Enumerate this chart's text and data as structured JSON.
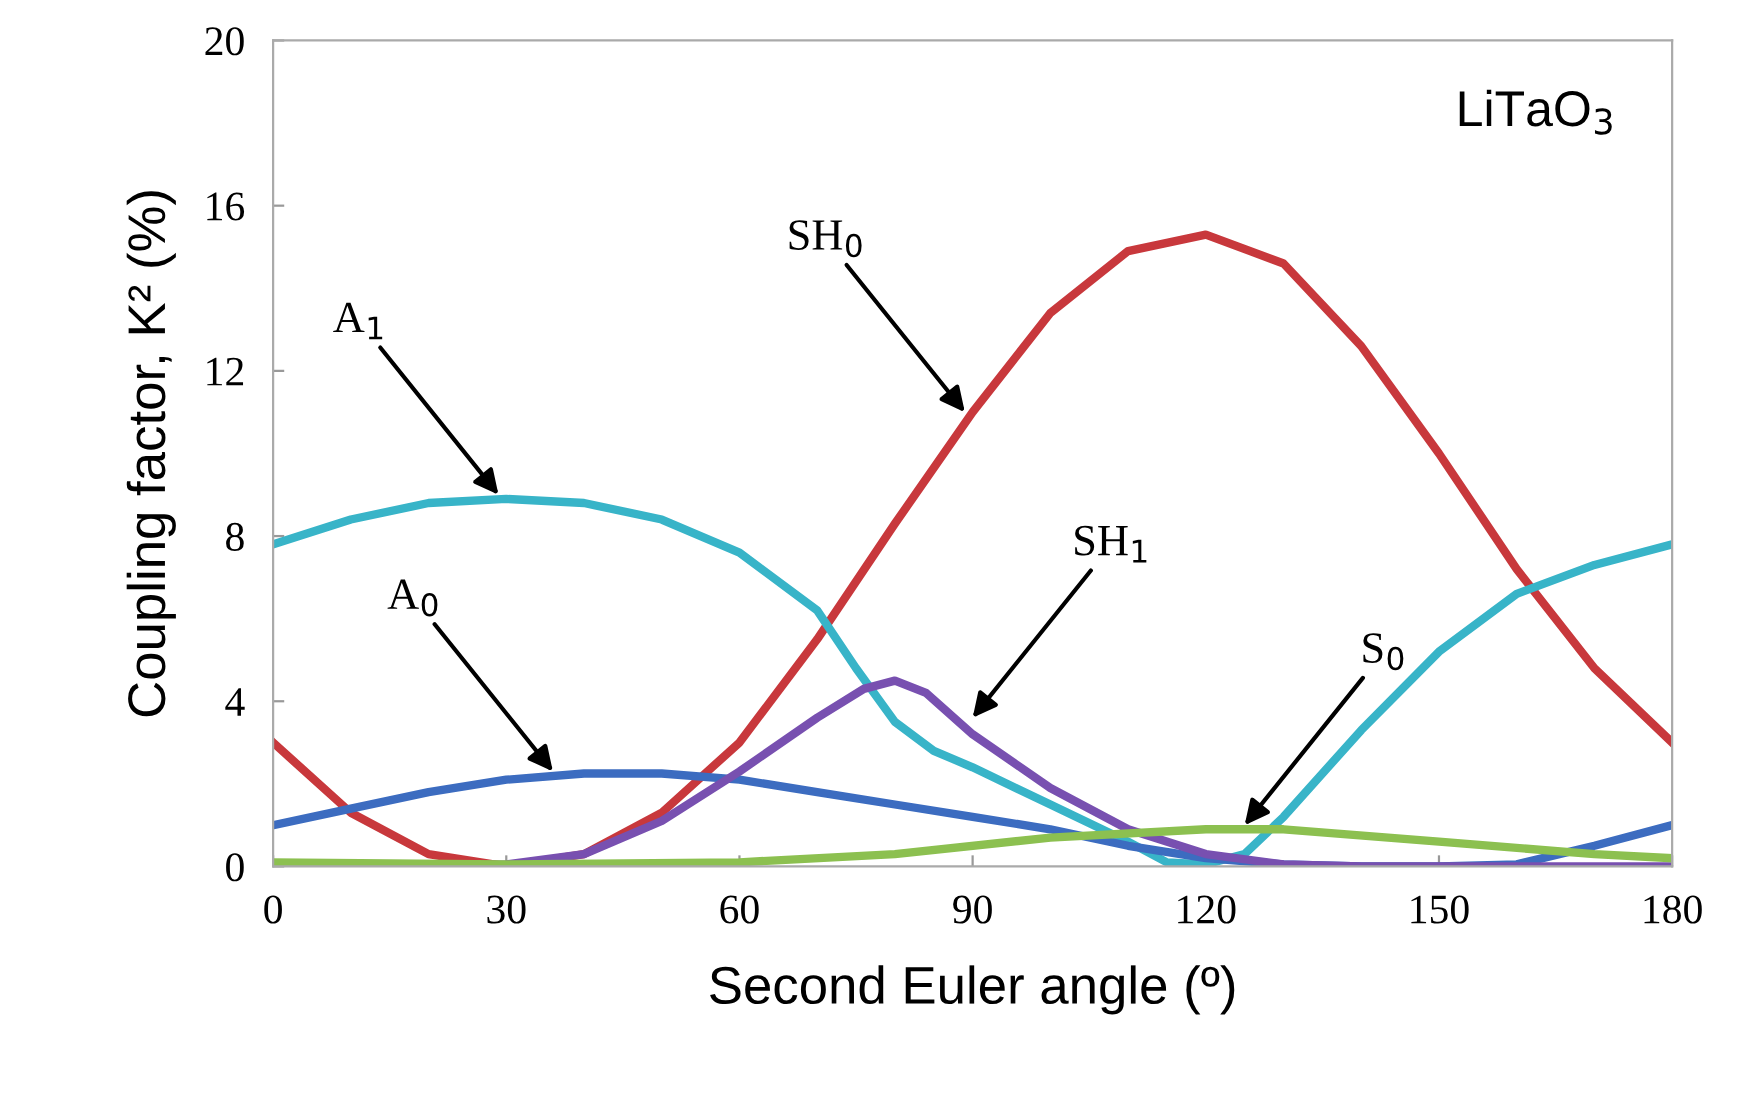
{
  "chart_data": {
    "type": "line",
    "xlabel": "Second Euler angle (º)",
    "ylabel": "Coupling factor, K² (%)",
    "xlim": [
      0,
      180
    ],
    "ylim": [
      0,
      20
    ],
    "xticks": [
      0,
      30,
      60,
      90,
      120,
      150,
      180
    ],
    "yticks": [
      0,
      4,
      8,
      12,
      16,
      20
    ],
    "grid": false,
    "legend": false,
    "marker": "none",
    "line_style": "solid",
    "series": [
      {
        "color": "#c8383c",
        "x": [
          0,
          10,
          20,
          30,
          40,
          50,
          60,
          70,
          80,
          90,
          100,
          110,
          120,
          130,
          140,
          150,
          160,
          170,
          180
        ],
        "values": [
          3,
          1.3,
          0.3,
          0,
          0.3,
          1.3,
          3,
          5.5,
          8.3,
          11,
          13.4,
          14.9,
          15.3,
          14.6,
          12.6,
          10,
          7.2,
          4.8,
          3
        ]
      },
      {
        "color": "#38b4c8",
        "x": [
          0,
          10,
          20,
          30,
          40,
          50,
          60,
          70,
          75,
          80,
          85,
          90,
          100,
          110,
          115,
          120,
          125,
          130,
          140,
          150,
          160,
          170,
          180
        ],
        "values": [
          7.8,
          8.4,
          8.8,
          8.9,
          8.8,
          8.4,
          7.6,
          6.2,
          4.8,
          3.5,
          2.8,
          2.4,
          1.5,
          0.6,
          0.1,
          0.05,
          0.3,
          1.2,
          3.3,
          5.2,
          6.6,
          7.3,
          7.8
        ]
      },
      {
        "color": "#3c6cc0",
        "x": [
          0,
          10,
          20,
          30,
          40,
          50,
          60,
          70,
          80,
          90,
          100,
          110,
          120,
          130,
          140,
          150,
          160,
          170,
          180
        ],
        "values": [
          1.0,
          1.4,
          1.8,
          2.1,
          2.25,
          2.25,
          2.1,
          1.8,
          1.5,
          1.2,
          0.9,
          0.5,
          0.2,
          0.05,
          0,
          0,
          0.05,
          0.5,
          1.0
        ]
      },
      {
        "color": "#7850b0",
        "x": [
          0,
          20,
          30,
          40,
          50,
          60,
          70,
          76,
          80,
          84,
          90,
          100,
          110,
          120,
          130,
          140,
          180
        ],
        "values": [
          0,
          0,
          0.05,
          0.3,
          1.1,
          2.3,
          3.6,
          4.3,
          4.5,
          4.2,
          3.2,
          1.9,
          0.9,
          0.3,
          0.05,
          0,
          0
        ]
      },
      {
        "color": "#8cc050",
        "x": [
          0,
          30,
          60,
          80,
          100,
          120,
          130,
          150,
          170,
          180
        ],
        "values": [
          0.1,
          0.05,
          0.1,
          0.3,
          0.7,
          0.9,
          0.9,
          0.6,
          0.3,
          0.2
        ]
      }
    ],
    "annotations": [
      "LiTaO$_{3}$",
      {
        "text": "A$_{1}$",
        "x": 29,
        "y": 9.0
      },
      {
        "text": "A$_{0}$",
        "x": 36,
        "y": 2.3
      },
      {
        "text": "SH$_{0}$",
        "x": 89,
        "y": 11
      },
      {
        "text": "SH$_{1}$",
        "x": 90,
        "y": 3.6
      },
      {
        "text": "S$_{0}$",
        "x": 125,
        "y": 1.0
      }
    ]
  }
}
